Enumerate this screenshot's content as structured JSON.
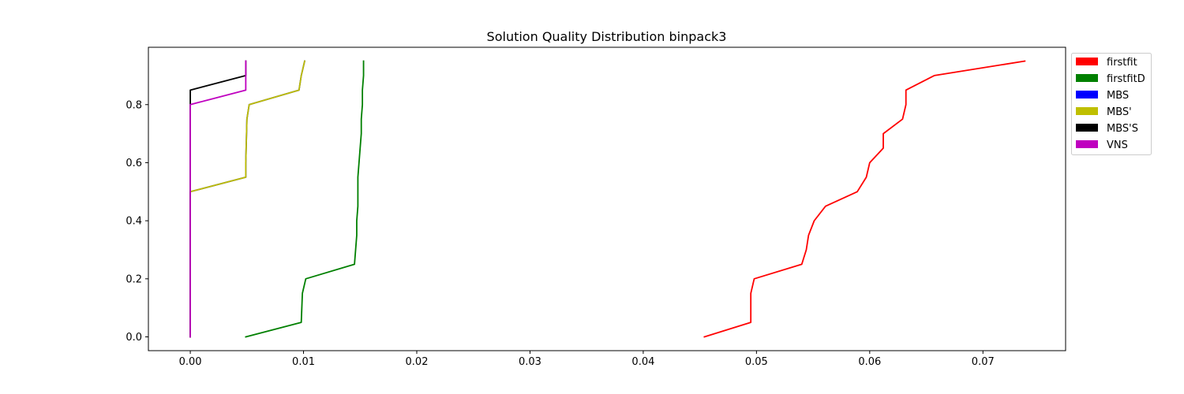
{
  "chart_data": {
    "type": "line",
    "title": "Solution Quality Distribution binpack3",
    "xlabel": "",
    "ylabel": "",
    "xlim": [
      -0.0037,
      0.0773
    ],
    "ylim": [
      -0.0475,
      0.9975
    ],
    "xticks": [
      0.0,
      0.01,
      0.02,
      0.03,
      0.04,
      0.05,
      0.06,
      0.07
    ],
    "xtick_labels": [
      "0.00",
      "0.01",
      "0.02",
      "0.03",
      "0.04",
      "0.05",
      "0.06",
      "0.07"
    ],
    "yticks": [
      0.0,
      0.2,
      0.4,
      0.6,
      0.8
    ],
    "ytick_labels": [
      "0.0",
      "0.2",
      "0.4",
      "0.6",
      "0.8"
    ],
    "grid": false,
    "legend_position": "outside-right",
    "series": [
      {
        "name": "firstfit",
        "color": "#ff0000",
        "points": [
          [
            0.0454,
            0.0
          ],
          [
            0.0495,
            0.05
          ],
          [
            0.0495,
            0.15
          ],
          [
            0.0498,
            0.2
          ],
          [
            0.054,
            0.25
          ],
          [
            0.0544,
            0.3
          ],
          [
            0.0546,
            0.35
          ],
          [
            0.0551,
            0.4
          ],
          [
            0.0561,
            0.45
          ],
          [
            0.0589,
            0.5
          ],
          [
            0.0597,
            0.55
          ],
          [
            0.06,
            0.6
          ],
          [
            0.0612,
            0.65
          ],
          [
            0.0612,
            0.7
          ],
          [
            0.0629,
            0.75
          ],
          [
            0.0632,
            0.8
          ],
          [
            0.0632,
            0.85
          ],
          [
            0.0657,
            0.9
          ],
          [
            0.0737,
            0.95
          ]
        ]
      },
      {
        "name": "firstfitD",
        "color": "#008000",
        "points": [
          [
            0.0049,
            0.0
          ],
          [
            0.0098,
            0.05
          ],
          [
            0.0099,
            0.15
          ],
          [
            0.0102,
            0.2
          ],
          [
            0.0145,
            0.25
          ],
          [
            0.0146,
            0.3
          ],
          [
            0.0147,
            0.35
          ],
          [
            0.0147,
            0.4
          ],
          [
            0.0148,
            0.45
          ],
          [
            0.0148,
            0.5
          ],
          [
            0.0148,
            0.55
          ],
          [
            0.0149,
            0.6
          ],
          [
            0.015,
            0.65
          ],
          [
            0.0151,
            0.7
          ],
          [
            0.0151,
            0.75
          ],
          [
            0.0152,
            0.8
          ],
          [
            0.0152,
            0.85
          ],
          [
            0.0153,
            0.9
          ],
          [
            0.0153,
            0.95
          ]
        ]
      },
      {
        "name": "MBS",
        "color": "#0000ff",
        "points": [
          [
            0.0,
            0.0
          ],
          [
            0.0,
            0.5
          ],
          [
            0.0049,
            0.55
          ],
          [
            0.0049,
            0.6
          ],
          [
            0.005,
            0.75
          ],
          [
            0.0052,
            0.8
          ],
          [
            0.0096,
            0.85
          ],
          [
            0.0098,
            0.9
          ],
          [
            0.0101,
            0.95
          ]
        ]
      },
      {
        "name": "MBS'",
        "color": "#bfbf00",
        "points": [
          [
            0.0,
            0.0
          ],
          [
            0.0,
            0.5
          ],
          [
            0.0049,
            0.55
          ],
          [
            0.0049,
            0.6
          ],
          [
            0.005,
            0.75
          ],
          [
            0.0052,
            0.8
          ],
          [
            0.0096,
            0.85
          ],
          [
            0.0098,
            0.9
          ],
          [
            0.0101,
            0.95
          ]
        ]
      },
      {
        "name": "MBS'S",
        "color": "#000000",
        "points": [
          [
            0.0,
            0.0
          ],
          [
            0.0,
            0.85
          ],
          [
            0.0049,
            0.9
          ],
          [
            0.0049,
            0.95
          ]
        ]
      },
      {
        "name": "VNS",
        "color": "#bf00bf",
        "points": [
          [
            0.0,
            0.0
          ],
          [
            0.0,
            0.8
          ],
          [
            0.0049,
            0.85
          ],
          [
            0.0049,
            0.95
          ]
        ]
      }
    ]
  }
}
